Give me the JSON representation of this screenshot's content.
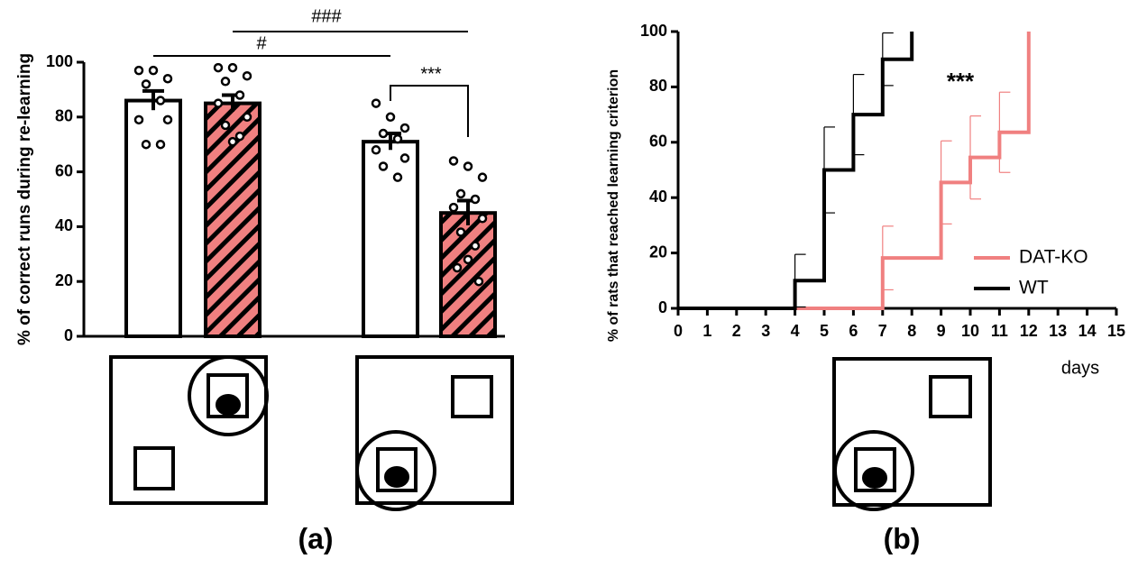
{
  "chart_data": [
    {
      "type": "bar",
      "y_label": "% of correct runs during re-learning",
      "categories": [
        null,
        null,
        null,
        null
      ],
      "values": [
        86,
        85,
        71,
        45
      ],
      "errors": [
        3.5,
        3,
        3,
        4.5
      ],
      "colors": [
        "#ffffff",
        "#f08080",
        "#ffffff",
        "#f08080"
      ],
      "hatched": [
        false,
        true,
        false,
        true
      ],
      "points": [
        [
          97,
          97,
          94,
          92,
          86,
          79,
          79,
          70,
          70
        ],
        [
          98,
          98,
          95,
          93,
          88,
          85,
          80,
          77,
          73,
          71
        ],
        [
          85,
          80,
          76,
          74,
          72,
          68,
          65,
          62,
          58
        ],
        [
          64,
          62,
          58,
          52,
          50,
          47,
          43,
          38,
          33,
          28,
          25,
          20
        ]
      ],
      "annotations": [
        "###",
        "#",
        "***"
      ],
      "ylim": [
        0,
        100
      ],
      "yticks": [
        0,
        20,
        40,
        60,
        80,
        100
      ],
      "panel_label": "(a)"
    },
    {
      "type": "step",
      "y_label": "% of rats that reached learning criterion",
      "x_label": "days",
      "series": [
        {
          "name": "DAT-KO",
          "color": "#f08080",
          "x": [
            0,
            7,
            9,
            10,
            11,
            12
          ],
          "values": [
            0,
            18.2,
            45.5,
            54.5,
            63.6,
            100
          ],
          "errors": [
            null,
            11.5,
            15,
            15,
            14.5,
            null
          ]
        },
        {
          "name": "WT",
          "color": "#000000",
          "x": [
            0,
            4,
            5,
            6,
            7,
            8
          ],
          "values": [
            0,
            10,
            50,
            70,
            90,
            100
          ],
          "errors": [
            null,
            9.5,
            15.5,
            14.5,
            9.5,
            null
          ]
        }
      ],
      "annotations": [
        "***"
      ],
      "xlim": [
        0,
        15
      ],
      "xticks": [
        0,
        1,
        2,
        3,
        4,
        5,
        6,
        7,
        8,
        9,
        10,
        11,
        12,
        13,
        14,
        15
      ],
      "ylim": [
        0,
        100
      ],
      "yticks": [
        0,
        20,
        40,
        60,
        80,
        100
      ],
      "legend": "lower right",
      "panel_label": "(b)"
    }
  ]
}
